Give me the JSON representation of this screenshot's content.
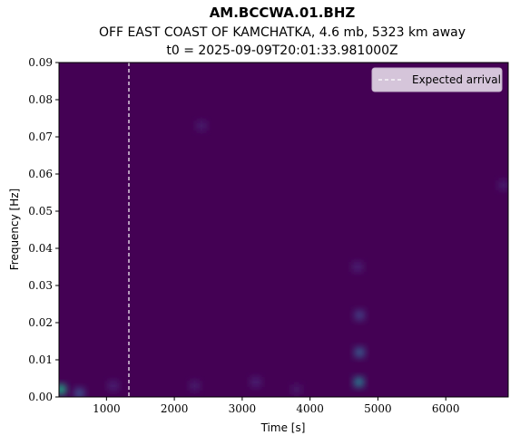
{
  "chart_data": {
    "type": "heatmap",
    "title": "AM.BCCWA.01.BHZ",
    "subtitle": "OFF EAST COAST OF KAMCHATKA, 4.6 mb, 5323 km away",
    "subtitle2": "t0 = 2025-09-09T20:01:33.981000Z",
    "xlabel": "Time [s]",
    "ylabel": "Frequency [Hz]",
    "xlim": [
      300,
      6920
    ],
    "ylim": [
      0,
      0.09
    ],
    "x_ticks": [
      1000,
      2000,
      3000,
      4000,
      5000,
      6000
    ],
    "y_ticks": [
      0.0,
      0.01,
      0.02,
      0.03,
      0.04,
      0.05,
      0.06,
      0.07,
      0.08,
      0.09
    ],
    "x_tick_labels": [
      "1000",
      "2000",
      "3000",
      "4000",
      "5000",
      "6000"
    ],
    "y_tick_labels": [
      "0.00",
      "0.01",
      "0.02",
      "0.03",
      "0.04",
      "0.05",
      "0.06",
      "0.07",
      "0.08",
      "0.09"
    ],
    "colormap": "viridis",
    "expected_arrival": 1330,
    "legend": {
      "entries": [
        "Expected arrival"
      ],
      "placement": "top-right"
    },
    "features": [
      {
        "t": 330,
        "f": 0.002,
        "level": 0.75
      },
      {
        "t": 4720,
        "f": 0.004,
        "level": 0.5
      },
      {
        "t": 4730,
        "f": 0.012,
        "level": 0.35
      },
      {
        "t": 4730,
        "f": 0.022,
        "level": 0.22
      },
      {
        "t": 4700,
        "f": 0.035,
        "level": 0.12
      },
      {
        "t": 600,
        "f": 0.001,
        "level": 0.3
      },
      {
        "t": 1100,
        "f": 0.003,
        "level": 0.12
      },
      {
        "t": 2300,
        "f": 0.003,
        "level": 0.1
      },
      {
        "t": 3200,
        "f": 0.004,
        "level": 0.12
      },
      {
        "t": 3800,
        "f": 0.002,
        "level": 0.08
      },
      {
        "t": 2400,
        "f": 0.073,
        "level": 0.1
      },
      {
        "t": 6850,
        "f": 0.057,
        "level": 0.1
      }
    ],
    "colors": {
      "background": "#440154",
      "arrival_line": "#ffffff",
      "legend_bg": "#e2d6e6"
    }
  }
}
